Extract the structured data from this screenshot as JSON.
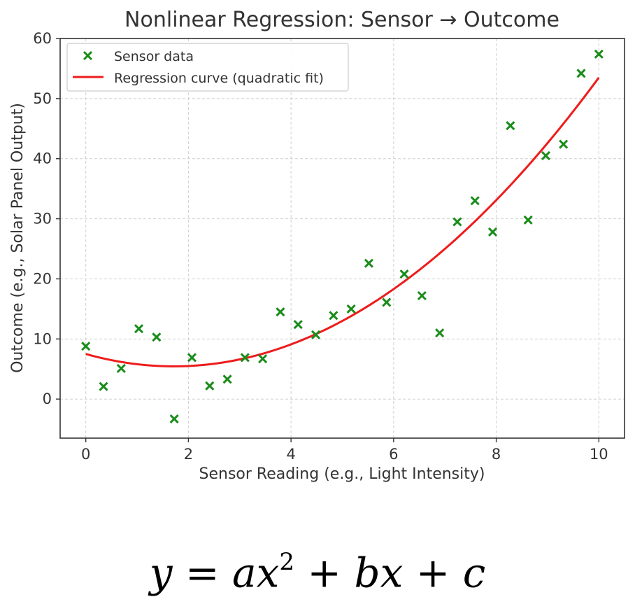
{
  "chart_data": {
    "type": "scatter",
    "title": "Nonlinear Regression: Sensor → Outcome",
    "xlabel": "Sensor Reading (e.g., Light Intensity)",
    "ylabel": "Outcome (e.g., Solar Panel Output)",
    "xlim": [
      -0.5,
      10.5
    ],
    "ylim": [
      -6.5,
      60
    ],
    "xticks": [
      0,
      2,
      4,
      6,
      8,
      10
    ],
    "yticks": [
      0,
      10,
      20,
      30,
      40,
      50,
      60
    ],
    "grid": true,
    "legend": "top-left",
    "series": [
      {
        "name": "Sensor data",
        "kind": "scatter",
        "marker": "x",
        "color": "#1a8c1a",
        "x": [
          0,
          0.345,
          0.69,
          1.034,
          1.379,
          1.724,
          2.069,
          2.414,
          2.759,
          3.103,
          3.448,
          3.793,
          4.138,
          4.483,
          4.828,
          5.172,
          5.517,
          5.862,
          6.207,
          6.552,
          6.897,
          7.241,
          7.586,
          7.931,
          8.276,
          8.621,
          8.966,
          9.31,
          9.655,
          10
        ],
        "y": [
          8.8,
          2.1,
          5.1,
          11.7,
          10.3,
          -3.3,
          6.9,
          2.2,
          3.3,
          6.9,
          6.7,
          14.5,
          12.4,
          10.7,
          13.9,
          15.0,
          22.6,
          16.1,
          20.8,
          17.2,
          11.0,
          29.5,
          33.0,
          27.8,
          45.5,
          29.8,
          40.5,
          42.4,
          54.2,
          57.4
        ]
      },
      {
        "name": "Regression curve (quadratic fit)",
        "kind": "line",
        "color": "#ee1c1c",
        "model": "quadratic",
        "coefficients": {
          "a": 0.7,
          "b": -2.4,
          "c": 7.5
        }
      }
    ],
    "annotation": {
      "y": "y",
      "eq": "=",
      "ax": "ax",
      "exp": "2",
      "plus1": "+",
      "bx": "bx",
      "plus2": "+",
      "c": "c"
    }
  }
}
